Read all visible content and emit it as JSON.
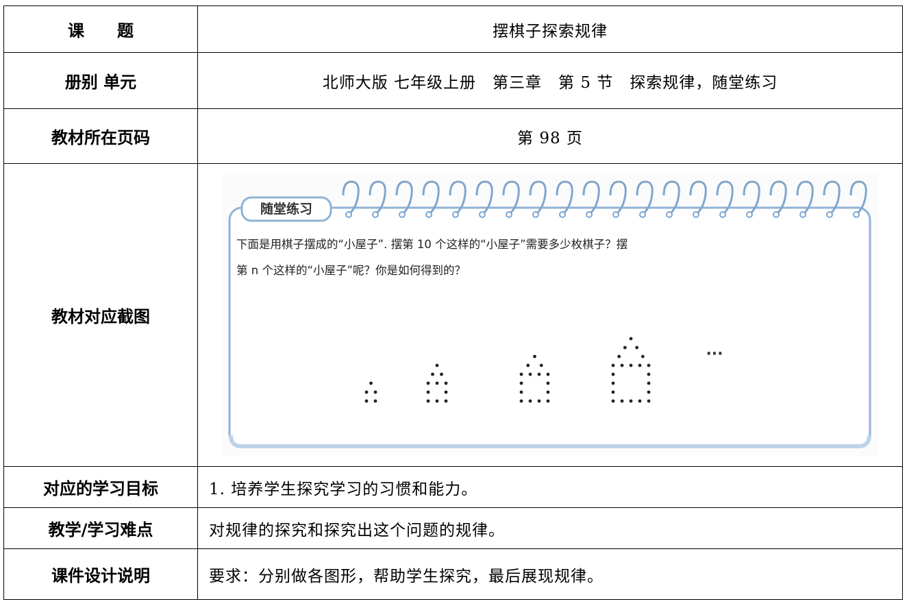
{
  "table": {
    "rows": [
      {
        "label": "课　　题",
        "text": "摆棋子探索规律"
      },
      {
        "label": "册别 单元",
        "text": "北师大版 七年级上册　第三章　第 5 节　探索规律，随堂练习"
      },
      {
        "label": "教材所在页码",
        "text": "第 98 页"
      },
      {
        "label": "教材对应截图",
        "figure": {
          "tag": "随堂练习",
          "question": [
            "下面是用棋子摆成的“小屋子”. 摆第 10 个这样的“小屋子”需要多少枚棋子？摆",
            "第 n 个这样的“小屋子”呢？你是如何得到的？"
          ],
          "ellipsis": "···"
        }
      },
      {
        "label": "对应的学习目标",
        "text": "1. 培养学生探究学习的习惯和能力。"
      },
      {
        "label": "教学/学习难点",
        "text": "对规律的探究和探究出这个问题的规律。"
      },
      {
        "label": "课件设计说明",
        "text": "要求：分别做各图形，帮助学生探究，最后展现规律。"
      }
    ]
  }
}
